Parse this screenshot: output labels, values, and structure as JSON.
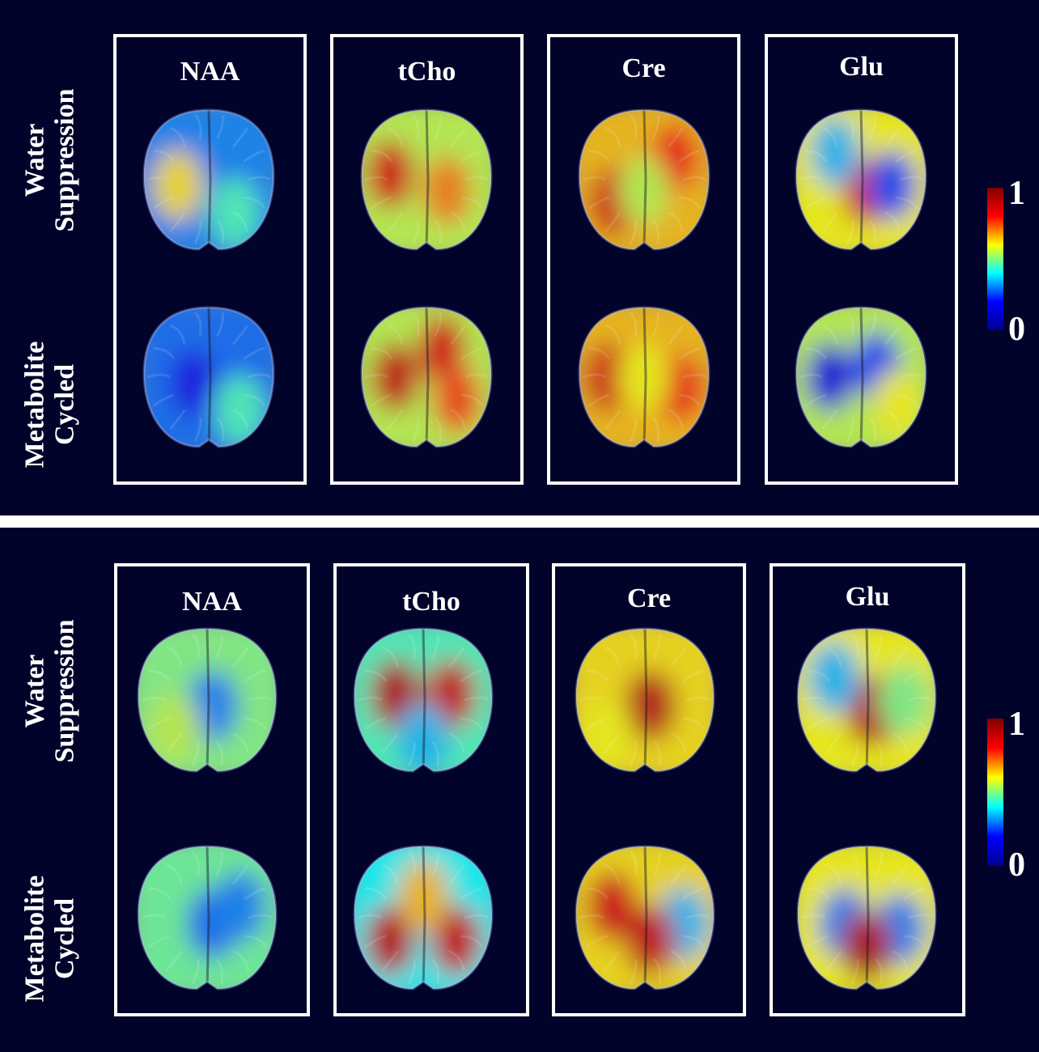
{
  "metabolites": [
    "NAA",
    "tCho",
    "Cre",
    "Glu"
  ],
  "row_labels": {
    "water": [
      "Water",
      "Suppression"
    ],
    "metabolite": [
      "Metabolite",
      "Cycled"
    ]
  },
  "colorbar": {
    "max": "1",
    "min": "0"
  },
  "colormap": [
    "#00008f",
    "#0000ff",
    "#00ffff",
    "#ffff00",
    "#ff0000",
    "#800000"
  ],
  "panels": [
    {
      "id": "top",
      "maps": {
        "water": [
          {
            "base": 0.3,
            "spots": [
              [
                -0.3,
                0.05,
                0.62
              ],
              [
                0.25,
                0.3,
                0.45
              ]
            ]
          },
          {
            "base": 0.55,
            "spots": [
              [
                -0.35,
                -0.05,
                0.85
              ],
              [
                0.2,
                0.1,
                0.7
              ]
            ]
          },
          {
            "base": 0.65,
            "spots": [
              [
                -0.3,
                0.2,
                0.85
              ],
              [
                0.3,
                -0.2,
                0.8
              ],
              [
                0.0,
                0.1,
                0.55
              ]
            ]
          },
          {
            "base": 0.6,
            "spots": [
              [
                0.05,
                0.1,
                0.85
              ],
              [
                -0.25,
                -0.25,
                0.35
              ],
              [
                0.3,
                0.05,
                0.25
              ]
            ]
          }
        ],
        "metabolite": [
          {
            "base": 0.28,
            "spots": [
              [
                -0.15,
                0.05,
                0.18
              ],
              [
                0.3,
                0.3,
                0.45
              ]
            ]
          },
          {
            "base": 0.55,
            "spots": [
              [
                -0.3,
                0.0,
                0.88
              ],
              [
                0.15,
                -0.25,
                0.85
              ],
              [
                0.3,
                0.2,
                0.75
              ]
            ]
          },
          {
            "base": 0.65,
            "spots": [
              [
                -0.35,
                0.0,
                0.85
              ],
              [
                0.35,
                0.1,
                0.8
              ],
              [
                0.0,
                0.0,
                0.6
              ]
            ]
          },
          {
            "base": 0.55,
            "spots": [
              [
                -0.3,
                0.0,
                0.15
              ],
              [
                0.15,
                -0.1,
                0.25
              ],
              [
                0.35,
                0.25,
                0.6
              ]
            ]
          }
        ]
      }
    },
    {
      "id": "bottom",
      "maps": {
        "water": [
          {
            "base": 0.5,
            "spots": [
              [
                0.05,
                0.05,
                0.3
              ],
              [
                -0.3,
                0.25,
                0.55
              ]
            ]
          },
          {
            "base": 0.45,
            "spots": [
              [
                -0.25,
                -0.05,
                0.92
              ],
              [
                0.25,
                -0.05,
                0.88
              ],
              [
                0.0,
                0.35,
                0.35
              ]
            ]
          },
          {
            "base": 0.62,
            "spots": [
              [
                0.05,
                0.05,
                0.9
              ],
              [
                -0.35,
                0.3,
                0.6
              ]
            ]
          },
          {
            "base": 0.6,
            "spots": [
              [
                0.05,
                0.1,
                0.9
              ],
              [
                -0.3,
                -0.2,
                0.35
              ],
              [
                0.35,
                0.0,
                0.5
              ]
            ]
          }
        ],
        "metabolite": [
          {
            "base": 0.48,
            "spots": [
              [
                0.05,
                0.05,
                0.28
              ],
              [
                0.3,
                -0.1,
                0.3
              ]
            ]
          },
          {
            "base": 0.4,
            "spots": [
              [
                -0.3,
                0.2,
                0.9
              ],
              [
                0.3,
                0.2,
                0.88
              ],
              [
                0.0,
                -0.2,
                0.65
              ]
            ]
          },
          {
            "base": 0.62,
            "spots": [
              [
                -0.3,
                -0.1,
                0.85
              ],
              [
                0.35,
                0.05,
                0.35
              ],
              [
                0.05,
                0.2,
                0.88
              ]
            ]
          },
          {
            "base": 0.6,
            "spots": [
              [
                -0.2,
                0.05,
                0.3
              ],
              [
                0.3,
                0.1,
                0.3
              ],
              [
                0.0,
                0.25,
                0.92
              ]
            ]
          }
        ]
      }
    }
  ]
}
